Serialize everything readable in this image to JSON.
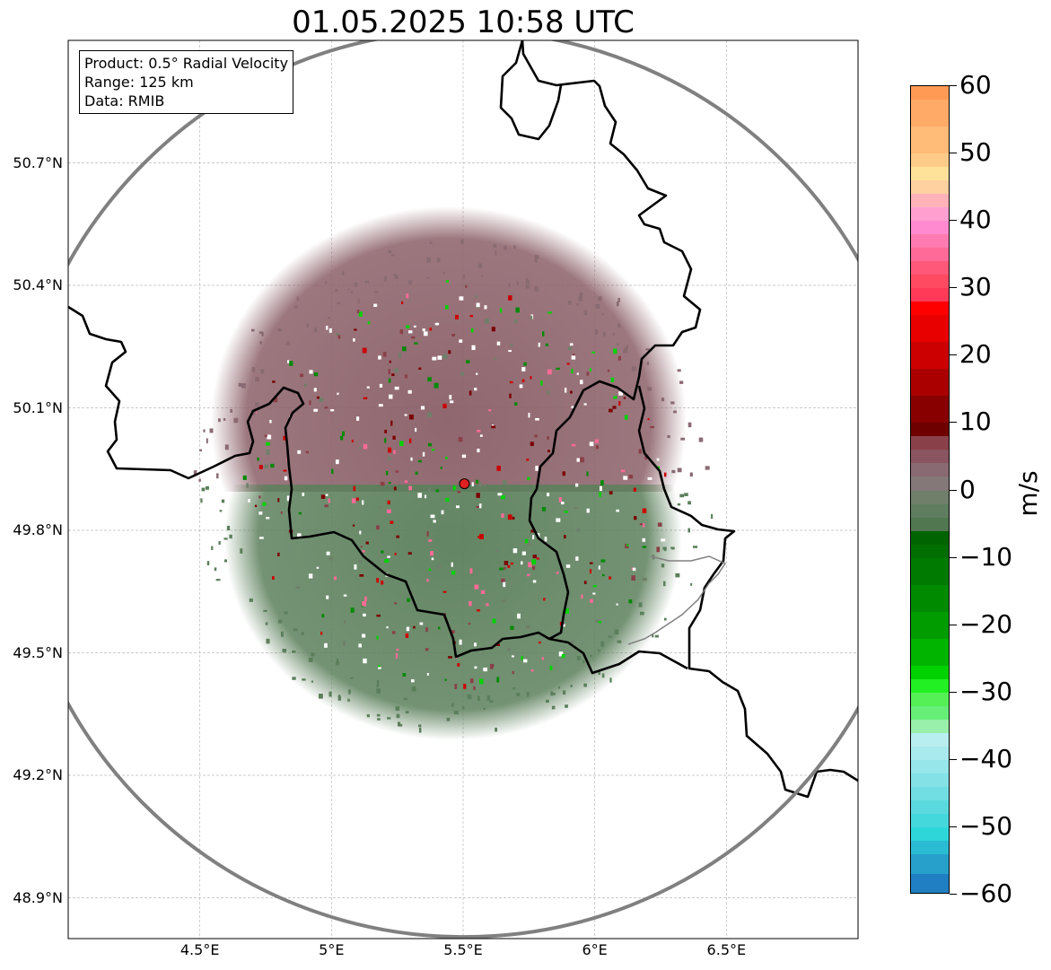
{
  "title": "01.05.2025 10:58 UTC",
  "info_box": {
    "product": "Product: 0.5° Radial Velocity",
    "range": "Range: 125 km",
    "data": "Data: RMIB"
  },
  "map": {
    "lon_range": [
      4.0,
      7.0
    ],
    "lat_range": [
      48.8,
      51.0
    ],
    "grid": true,
    "lat_ticks": [
      {
        "value": 50.7,
        "label": "50.7°N"
      },
      {
        "value": 50.4,
        "label": "50.4°N"
      },
      {
        "value": 50.1,
        "label": "50.1°N"
      },
      {
        "value": 49.8,
        "label": "49.8°N"
      },
      {
        "value": 49.5,
        "label": "49.5°N"
      },
      {
        "value": 49.2,
        "label": "49.2°N"
      },
      {
        "value": 48.9,
        "label": "48.9°N"
      }
    ],
    "lon_ticks": [
      {
        "value": 4.5,
        "label": "4.5°E"
      },
      {
        "value": 5.0,
        "label": "5°E"
      },
      {
        "value": 5.5,
        "label": "5.5°E"
      },
      {
        "value": 6.0,
        "label": "6°E"
      },
      {
        "value": 6.5,
        "label": "6.5°E"
      }
    ],
    "radar_site": {
      "lon": 5.505,
      "lat": 49.914
    },
    "range_ring_km": 125,
    "colors": {
      "approaching_green": "#5b7f5b",
      "receding_maroon": "#8a5f67",
      "ring": "#808080",
      "site_marker": "#e02020"
    }
  },
  "colorbar": {
    "label": "m/s",
    "min": -60,
    "max": 60,
    "ticks": [
      {
        "value": 60,
        "label": "60"
      },
      {
        "value": 50,
        "label": "50"
      },
      {
        "value": 40,
        "label": "40"
      },
      {
        "value": 30,
        "label": "30"
      },
      {
        "value": 20,
        "label": "20"
      },
      {
        "value": 10,
        "label": "10"
      },
      {
        "value": 0,
        "label": "0"
      },
      {
        "value": -10,
        "label": "−10"
      },
      {
        "value": -20,
        "label": "−20"
      },
      {
        "value": -30,
        "label": "−30"
      },
      {
        "value": -40,
        "label": "−40"
      },
      {
        "value": -50,
        "label": "−50"
      },
      {
        "value": -60,
        "label": "−60"
      }
    ],
    "segments": [
      {
        "from": 58,
        "to": 60,
        "color": "#ff9a55"
      },
      {
        "from": 54,
        "to": 58,
        "color": "#ffaa66"
      },
      {
        "from": 50,
        "to": 54,
        "color": "#ffbb77"
      },
      {
        "from": 48,
        "to": 50,
        "color": "#ffcc88"
      },
      {
        "from": 46,
        "to": 48,
        "color": "#ffe29a"
      },
      {
        "from": 44,
        "to": 46,
        "color": "#ffd0a0"
      },
      {
        "from": 42,
        "to": 44,
        "color": "#ffb3b8"
      },
      {
        "from": 40,
        "to": 42,
        "color": "#ff9fd0"
      },
      {
        "from": 38,
        "to": 40,
        "color": "#ff8ad0"
      },
      {
        "from": 36,
        "to": 38,
        "color": "#ff7ab0"
      },
      {
        "from": 34,
        "to": 36,
        "color": "#ff6a98"
      },
      {
        "from": 32,
        "to": 34,
        "color": "#ff5878"
      },
      {
        "from": 30,
        "to": 32,
        "color": "#ff4a62"
      },
      {
        "from": 28,
        "to": 30,
        "color": "#ff3a58"
      },
      {
        "from": 26,
        "to": 28,
        "color": "#ff0000"
      },
      {
        "from": 22,
        "to": 26,
        "color": "#e80000"
      },
      {
        "from": 18,
        "to": 22,
        "color": "#cc0000"
      },
      {
        "from": 14,
        "to": 18,
        "color": "#aa0000"
      },
      {
        "from": 10,
        "to": 14,
        "color": "#880000"
      },
      {
        "from": 8,
        "to": 10,
        "color": "#6e0000"
      },
      {
        "from": 6,
        "to": 8,
        "color": "#8a4048"
      },
      {
        "from": 4,
        "to": 6,
        "color": "#8a5560"
      },
      {
        "from": 2,
        "to": 4,
        "color": "#8a6a72"
      },
      {
        "from": 0,
        "to": 2,
        "color": "#857878"
      },
      {
        "from": -2,
        "to": 0,
        "color": "#6f7f6a"
      },
      {
        "from": -4,
        "to": -2,
        "color": "#5f7d5f"
      },
      {
        "from": -6,
        "to": -4,
        "color": "#507750"
      },
      {
        "from": -8,
        "to": -6,
        "color": "#006400"
      },
      {
        "from": -10,
        "to": -8,
        "color": "#006e00"
      },
      {
        "from": -14,
        "to": -10,
        "color": "#007a00"
      },
      {
        "from": -18,
        "to": -14,
        "color": "#008a00"
      },
      {
        "from": -22,
        "to": -18,
        "color": "#009c00"
      },
      {
        "from": -26,
        "to": -22,
        "color": "#00b400"
      },
      {
        "from": -28,
        "to": -26,
        "color": "#00d200"
      },
      {
        "from": -30,
        "to": -28,
        "color": "#22f022"
      },
      {
        "from": -32,
        "to": -30,
        "color": "#55f055"
      },
      {
        "from": -34,
        "to": -32,
        "color": "#66ee77"
      },
      {
        "from": -36,
        "to": -34,
        "color": "#99f0aa"
      },
      {
        "from": -38,
        "to": -36,
        "color": "#b8eef0"
      },
      {
        "from": -40,
        "to": -38,
        "color": "#a8eaee"
      },
      {
        "from": -42,
        "to": -40,
        "color": "#96e6ea"
      },
      {
        "from": -44,
        "to": -42,
        "color": "#84e2e6"
      },
      {
        "from": -46,
        "to": -44,
        "color": "#70dee2"
      },
      {
        "from": -48,
        "to": -46,
        "color": "#5adadf"
      },
      {
        "from": -50,
        "to": -48,
        "color": "#44d8dc"
      },
      {
        "from": -52,
        "to": -50,
        "color": "#2ed6da"
      },
      {
        "from": -54,
        "to": -52,
        "color": "#2abcd2"
      },
      {
        "from": -57,
        "to": -54,
        "color": "#27a0cc"
      },
      {
        "from": -60,
        "to": -57,
        "color": "#1f7fc2"
      }
    ]
  }
}
